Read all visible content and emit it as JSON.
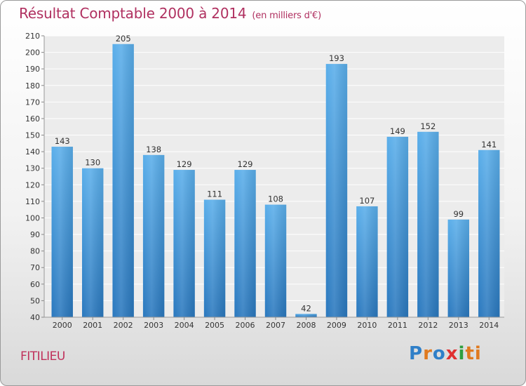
{
  "chart_data": {
    "type": "bar",
    "title": "Résultat Comptable 2000 à 2014",
    "subtitle": "(en milliers d'€)",
    "categories": [
      "2000",
      "2001",
      "2002",
      "2003",
      "2004",
      "2005",
      "2006",
      "2007",
      "2008",
      "2009",
      "2010",
      "2011",
      "2012",
      "2013",
      "2014"
    ],
    "values": [
      143,
      130,
      205,
      138,
      129,
      111,
      129,
      108,
      42,
      193,
      107,
      149,
      152,
      99,
      141
    ],
    "ylim": [
      40,
      210
    ],
    "yticks": [
      40,
      50,
      60,
      70,
      80,
      90,
      100,
      110,
      120,
      130,
      140,
      150,
      160,
      170,
      180,
      190,
      200,
      210
    ],
    "grid": true,
    "bar_color": "#4a9ee0"
  },
  "commune": "FITILIEU",
  "logo": [
    "P",
    "r",
    "o",
    "x",
    "i",
    "ti"
  ]
}
